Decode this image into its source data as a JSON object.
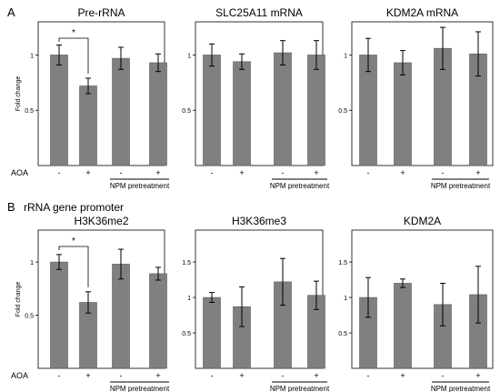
{
  "figure": {
    "panel_labels": [
      "A",
      "B"
    ],
    "section_b_title": "rRNA gene promoter",
    "row_label": "AOA",
    "group_label": "NPM pretreatment",
    "ylabel": "Fold change",
    "significance_mark": "*"
  },
  "chart_data": [
    {
      "type": "bar",
      "title": "Pre-rRNA",
      "categories": [
        "-",
        "+",
        "-",
        "+"
      ],
      "values": [
        1.0,
        0.72,
        0.97,
        0.93
      ],
      "errors": [
        0.09,
        0.07,
        0.1,
        0.08
      ],
      "ylim": [
        0,
        1.3
      ],
      "yticks": [
        "0.5",
        "1"
      ],
      "ytick_values": [
        0.5,
        1
      ],
      "ylabel": "Fold change",
      "significance": {
        "between": [
          0,
          1
        ],
        "label": "*"
      }
    },
    {
      "type": "bar",
      "title": "SLC25A11 mRNA",
      "categories": [
        "-",
        "+",
        "-",
        "+"
      ],
      "values": [
        1.0,
        0.94,
        1.02,
        1.0
      ],
      "errors": [
        0.1,
        0.07,
        0.11,
        0.13
      ],
      "ylim": [
        0,
        1.3
      ],
      "yticks": [
        "0.5",
        "1"
      ],
      "ytick_values": [
        0.5,
        1
      ]
    },
    {
      "type": "bar",
      "title": "KDM2A mRNA",
      "categories": [
        "-",
        "+",
        "-",
        "+"
      ],
      "values": [
        1.0,
        0.93,
        1.06,
        1.01
      ],
      "errors": [
        0.15,
        0.11,
        0.19,
        0.2
      ],
      "ylim": [
        0,
        1.3
      ],
      "yticks": [
        "0.5",
        "1"
      ],
      "ytick_values": [
        0.5,
        1
      ]
    },
    {
      "type": "bar",
      "title": "H3K36me2",
      "categories": [
        "-",
        "+",
        "-",
        "+"
      ],
      "values": [
        1.0,
        0.62,
        0.98,
        0.89
      ],
      "errors": [
        0.07,
        0.1,
        0.14,
        0.06
      ],
      "ylim": [
        0,
        1.3
      ],
      "yticks": [
        "0.5",
        "1"
      ],
      "ytick_values": [
        0.5,
        1
      ],
      "ylabel": "Fold change",
      "significance": {
        "between": [
          0,
          1
        ],
        "label": "*"
      }
    },
    {
      "type": "bar",
      "title": "H3K36me3",
      "categories": [
        "-",
        "+",
        "-",
        "+"
      ],
      "values": [
        1.0,
        0.87,
        1.22,
        1.03
      ],
      "errors": [
        0.07,
        0.28,
        0.33,
        0.2
      ],
      "ylim": [
        0,
        1.95
      ],
      "yticks": [
        "0.5",
        "1",
        "1.5"
      ],
      "ytick_values": [
        0.5,
        1,
        1.5
      ]
    },
    {
      "type": "bar",
      "title": "KDM2A",
      "categories": [
        "-",
        "+",
        "-",
        "+"
      ],
      "values": [
        1.0,
        1.2,
        0.9,
        1.04
      ],
      "errors": [
        0.28,
        0.06,
        0.3,
        0.4
      ],
      "ylim": [
        0,
        1.95
      ],
      "yticks": [
        "0.5",
        "1",
        "1.5"
      ],
      "ytick_values": [
        0.5,
        1,
        1.5
      ]
    }
  ]
}
